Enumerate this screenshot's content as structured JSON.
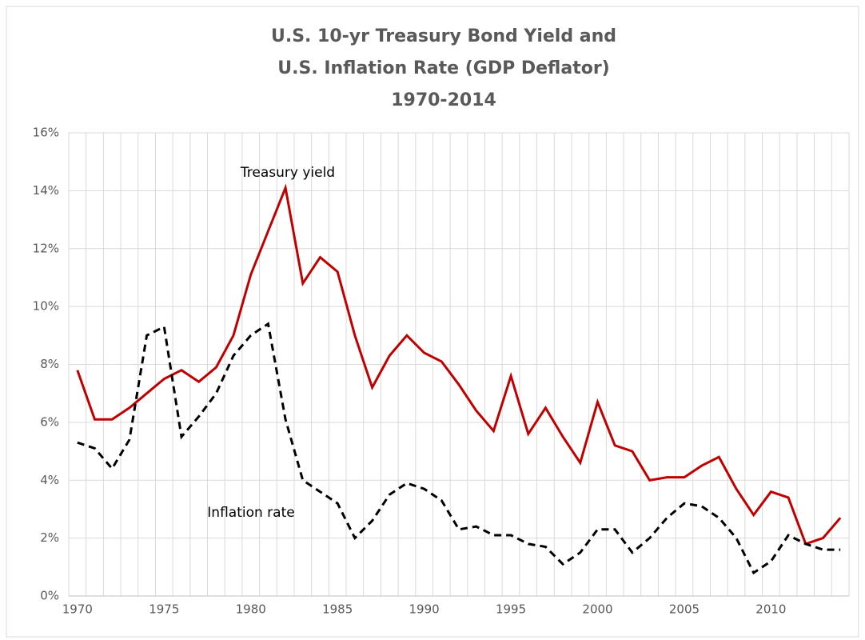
{
  "chart_data": {
    "type": "line",
    "title": [
      "U.S. 10-yr Treasury Bond Yield and",
      "U.S. Inflation Rate (GDP Deflator)",
      "1970-2014"
    ],
    "categories": [
      "1970",
      null,
      null,
      null,
      null,
      "1975",
      null,
      null,
      null,
      null,
      "1980",
      null,
      null,
      null,
      null,
      "1985",
      null,
      null,
      null,
      null,
      "1990",
      null,
      null,
      null,
      null,
      "1995",
      null,
      null,
      null,
      null,
      "2000",
      null,
      null,
      null,
      null,
      "2005",
      null,
      null,
      null,
      null,
      "2010",
      null,
      null,
      null,
      null
    ],
    "series": [
      {
        "name": "Treasury yield",
        "color": "#c00000",
        "dashed": false,
        "values": [
          7.8,
          6.1,
          6.1,
          6.5,
          7.0,
          7.5,
          7.8,
          7.4,
          7.9,
          9.0,
          11.1,
          12.6,
          14.1,
          10.8,
          11.7,
          11.2,
          9.0,
          7.2,
          8.3,
          9.0,
          8.4,
          8.1,
          7.3,
          6.4,
          5.7,
          7.6,
          5.6,
          6.5,
          5.5,
          4.6,
          6.7,
          5.2,
          5.0,
          4.0,
          4.1,
          4.1,
          4.5,
          4.8,
          3.7,
          2.8,
          3.6,
          3.4,
          1.8,
          2.0,
          2.7
        ]
      },
      {
        "name": "Inflation rate",
        "color": "#000000",
        "dashed": true,
        "values": [
          5.3,
          5.1,
          4.4,
          5.4,
          9.0,
          9.3,
          5.5,
          6.2,
          7.0,
          8.3,
          9.0,
          9.4,
          6.1,
          4.0,
          3.6,
          3.2,
          2.0,
          2.6,
          3.5,
          3.9,
          3.7,
          3.3,
          2.3,
          2.4,
          2.1,
          2.1,
          1.8,
          1.7,
          1.1,
          1.5,
          2.3,
          2.3,
          1.5,
          2.0,
          2.7,
          3.2,
          3.1,
          2.7,
          2.0,
          0.8,
          1.2,
          2.1,
          1.8,
          1.6,
          1.6
        ]
      }
    ],
    "ylim": [
      0,
      16
    ],
    "yticks": [
      {
        "value": 0,
        "label": "0%"
      },
      {
        "value": 2,
        "label": "2%"
      },
      {
        "value": 4,
        "label": "4%"
      },
      {
        "value": 6,
        "label": "6%"
      },
      {
        "value": 8,
        "label": "8%"
      },
      {
        "value": 10,
        "label": "10%"
      },
      {
        "value": 12,
        "label": "12%"
      },
      {
        "value": 14,
        "label": "14%"
      },
      {
        "value": 16,
        "label": "16%"
      }
    ],
    "grid": true
  }
}
